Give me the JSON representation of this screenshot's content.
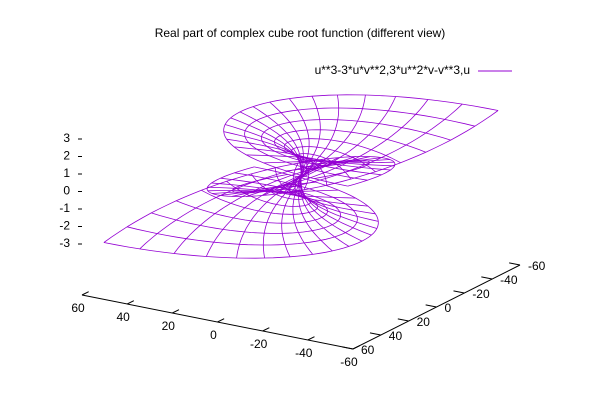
{
  "chart_data": {
    "type": "surface3d",
    "title": "Real part of complex cube root function (different view)",
    "series": [
      {
        "name": "u**3-3*u*v**2,3*u**2*v-v**3,u",
        "color": "#9400d3"
      }
    ],
    "xlim": [
      -60,
      60
    ],
    "ylim": [
      -60,
      60
    ],
    "zlim": [
      -3,
      3
    ],
    "xticks": [
      60,
      40,
      20,
      0,
      -20,
      -40,
      -60
    ],
    "yticks": [
      60,
      40,
      20,
      0,
      -20,
      -40,
      -60
    ],
    "zticks": [
      3,
      2,
      1,
      0,
      -1,
      -2,
      -3
    ],
    "hidden3d": false
  }
}
